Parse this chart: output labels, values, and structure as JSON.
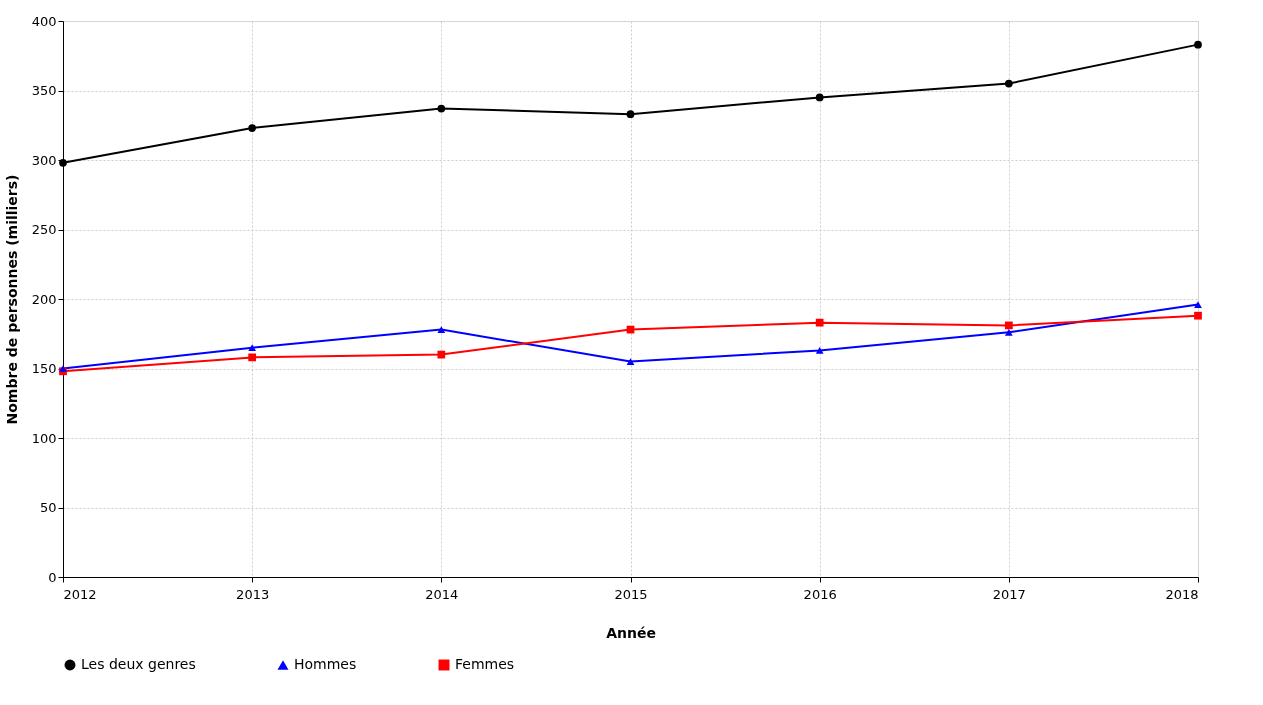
{
  "chart_data": {
    "type": "line",
    "xlabel": "Année",
    "ylabel": "Nombre de personnes (milliers)",
    "x": [
      2012,
      2013,
      2014,
      2015,
      2016,
      2017,
      2018
    ],
    "series": [
      {
        "name": "Les deux genres",
        "color": "#000000",
        "marker": "circle",
        "values": [
          298,
          323,
          337,
          333,
          345,
          355,
          383
        ]
      },
      {
        "name": "Hommes",
        "color": "#0000ff",
        "marker": "triangle",
        "values": [
          150,
          165,
          178,
          155,
          163,
          176,
          196
        ]
      },
      {
        "name": "Femmes",
        "color": "#ff0000",
        "marker": "square",
        "values": [
          148,
          158,
          160,
          178,
          183,
          181,
          188
        ]
      }
    ],
    "xlim": [
      2012,
      2018
    ],
    "xticks": [
      2012,
      2013,
      2014,
      2015,
      2016,
      2017,
      2018
    ],
    "ylim": [
      0,
      400
    ],
    "yticks": [
      0,
      50,
      100,
      150,
      200,
      250,
      300,
      350,
      400
    ],
    "grid": true,
    "legend": "bottom",
    "line_style": "solid"
  }
}
